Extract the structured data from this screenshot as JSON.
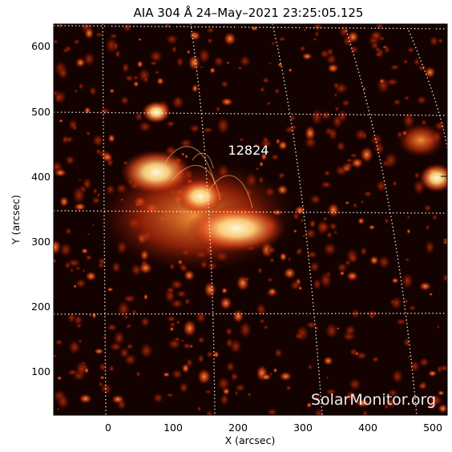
{
  "image": {
    "title": "AIA 304 Å 24–May–2021 23:25:05.125",
    "x_axis": {
      "label": "X (arcsec)",
      "ticks": [
        "0",
        "100",
        "200",
        "300",
        "400",
        "500"
      ]
    },
    "y_axis": {
      "label": "Y (arcsec)",
      "ticks": [
        "600",
        "500",
        "400",
        "300",
        "200",
        "100"
      ]
    },
    "region_label": "12824",
    "watermark": "SolarMonitor.org",
    "colors": {
      "background": "#140200",
      "hot": "#fff3c8",
      "warm": "#e0481a",
      "grid": "#ffffff"
    }
  }
}
